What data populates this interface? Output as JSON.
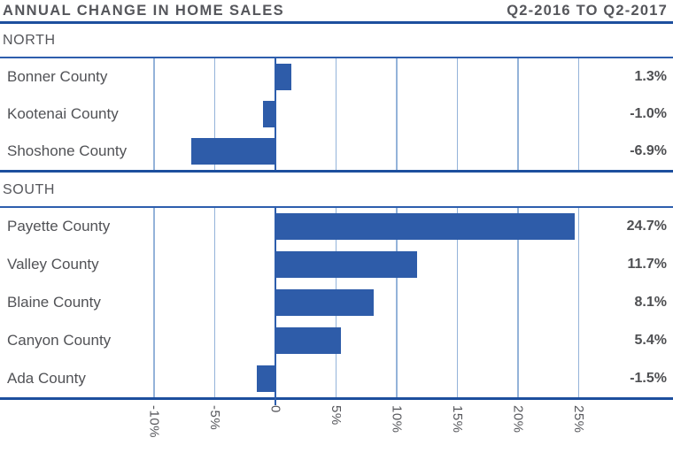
{
  "header": {
    "title": "ANNUAL CHANGE IN HOME SALES",
    "period": "Q2-2016 TO Q2-2017"
  },
  "chart_data": {
    "type": "bar",
    "orientation": "horizontal",
    "unit": "percent",
    "title": "ANNUAL CHANGE IN HOME SALES",
    "subtitle": "Q2-2016 TO Q2-2017",
    "axis": {
      "min": -10,
      "max": 25,
      "ticks": [
        -10,
        -5,
        0,
        5,
        10,
        15,
        20,
        25
      ],
      "tick_labels": [
        "-10%",
        "-5%",
        "0",
        "5%",
        "10%",
        "15%",
        "20%",
        "25%"
      ],
      "grid": true
    },
    "sections": [
      {
        "label": "NORTH",
        "rows": [
          {
            "label": "Bonner County",
            "value": 1.3,
            "value_label": "1.3%"
          },
          {
            "label": "Kootenai County",
            "value": -1.0,
            "value_label": "-1.0%"
          },
          {
            "label": "Shoshone County",
            "value": -6.9,
            "value_label": "-6.9%"
          }
        ]
      },
      {
        "label": "SOUTH",
        "rows": [
          {
            "label": "Payette County",
            "value": 24.7,
            "value_label": "24.7%"
          },
          {
            "label": "Valley County",
            "value": 11.7,
            "value_label": "11.7%"
          },
          {
            "label": "Blaine County",
            "value": 8.1,
            "value_label": "8.1%"
          },
          {
            "label": "Canyon County",
            "value": 5.4,
            "value_label": "5.4%"
          },
          {
            "label": "Ada County",
            "value": -1.5,
            "value_label": "-1.5%"
          }
        ]
      }
    ],
    "colors": {
      "bar": "#2e5ca9",
      "axis_dark": "#1d4f9e",
      "axis_mid": "#2d5ead",
      "grid": "#94b3d9",
      "text": "#55565b"
    }
  }
}
